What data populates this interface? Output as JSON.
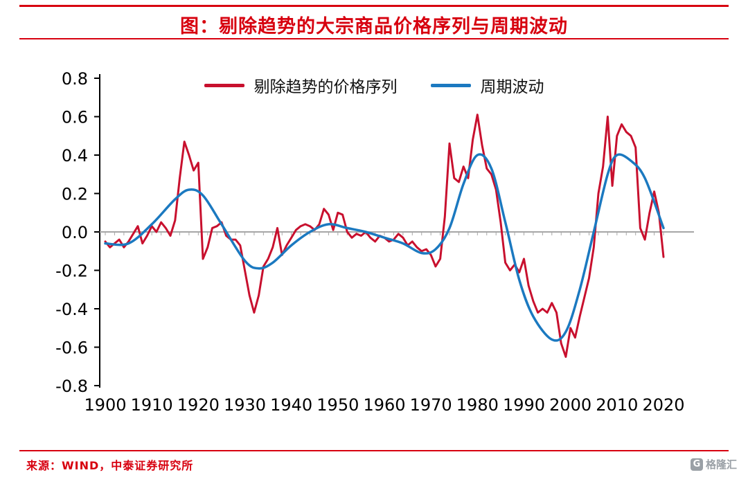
{
  "title": "图：剔除趋势的大宗商品价格序列与周期波动",
  "footer": {
    "source": "来源：WIND，中泰证券研究所",
    "logo_text": "格隆汇",
    "logo_icon": "G"
  },
  "colors": {
    "accent_red": "#d7000f",
    "series_red": "#c8102e",
    "series_blue": "#1b79c0",
    "axis_black": "#000000",
    "zero_line_gray": "#a6a6a6",
    "logo_gray": "#9aa0a6"
  },
  "chart_data": {
    "type": "line",
    "title": "图：剔除趋势的大宗商品价格序列与周期波动",
    "xlabel": "",
    "ylabel": "",
    "xlim": [
      1900,
      2020
    ],
    "ylim": [
      -0.8,
      0.8
    ],
    "x_ticks": [
      1900,
      1910,
      1920,
      1930,
      1940,
      1950,
      1960,
      1970,
      1980,
      1990,
      2000,
      2010,
      2020
    ],
    "y_ticks": [
      0.8,
      0.6,
      0.4,
      0.2,
      0.0,
      -0.2,
      -0.4,
      -0.6,
      -0.8
    ],
    "grid": false,
    "legend_position": "top",
    "axis_color": "#000000",
    "zero_line_color": "#a6a6a6",
    "series": [
      {
        "id": "detrended-price-series",
        "name": "剔除趋势的价格序列",
        "color": "#c8102e",
        "smooth": false,
        "stroke_width": 3,
        "x_start": 1900,
        "x_step": 1,
        "values": [
          -0.05,
          -0.08,
          -0.06,
          -0.04,
          -0.08,
          -0.05,
          -0.01,
          0.03,
          -0.06,
          -0.02,
          0.03,
          0.0,
          0.05,
          0.02,
          -0.02,
          0.06,
          0.28,
          0.47,
          0.4,
          0.32,
          0.36,
          -0.14,
          -0.08,
          0.02,
          0.03,
          0.05,
          -0.02,
          -0.04,
          -0.04,
          -0.07,
          -0.2,
          -0.33,
          -0.42,
          -0.33,
          -0.18,
          -0.14,
          -0.08,
          0.02,
          -0.12,
          -0.07,
          -0.03,
          0.01,
          0.03,
          0.04,
          0.03,
          0.01,
          0.04,
          0.12,
          0.09,
          0.01,
          0.1,
          0.09,
          0.0,
          -0.03,
          -0.01,
          -0.02,
          0.0,
          -0.03,
          -0.05,
          -0.02,
          -0.03,
          -0.05,
          -0.04,
          -0.01,
          -0.03,
          -0.07,
          -0.05,
          -0.08,
          -0.1,
          -0.09,
          -0.12,
          -0.18,
          -0.14,
          0.08,
          0.46,
          0.28,
          0.26,
          0.34,
          0.28,
          0.48,
          0.61,
          0.45,
          0.33,
          0.3,
          0.22,
          0.05,
          -0.16,
          -0.2,
          -0.17,
          -0.21,
          -0.14,
          -0.28,
          -0.36,
          -0.42,
          -0.4,
          -0.42,
          -0.37,
          -0.42,
          -0.58,
          -0.65,
          -0.5,
          -0.55,
          -0.44,
          -0.34,
          -0.24,
          -0.08,
          0.2,
          0.34,
          0.6,
          0.24,
          0.5,
          0.56,
          0.52,
          0.5,
          0.44,
          0.02,
          -0.04,
          0.1,
          0.21,
          0.1,
          -0.13
        ]
      },
      {
        "id": "cycle",
        "name": "周期波动",
        "color": "#1b79c0",
        "smooth": true,
        "stroke_width": 3.5,
        "x": [
          1900,
          1905,
          1910,
          1915,
          1918,
          1921,
          1925,
          1930,
          1933,
          1936,
          1940,
          1944,
          1948,
          1952,
          1956,
          1960,
          1964,
          1968,
          1971,
          1974,
          1977,
          1980,
          1983,
          1986,
          1989,
          1992,
          1996,
          1999,
          2002,
          2005,
          2008,
          2010,
          2013,
          2016,
          2020
        ],
        "values": [
          -0.06,
          -0.06,
          0.04,
          0.17,
          0.22,
          0.19,
          0.04,
          -0.15,
          -0.19,
          -0.16,
          -0.07,
          0.0,
          0.04,
          0.02,
          0.0,
          -0.03,
          -0.06,
          -0.11,
          -0.09,
          0.02,
          0.25,
          0.4,
          0.33,
          0.05,
          -0.25,
          -0.44,
          -0.56,
          -0.52,
          -0.3,
          0.0,
          0.3,
          0.4,
          0.37,
          0.28,
          0.02
        ]
      }
    ]
  }
}
